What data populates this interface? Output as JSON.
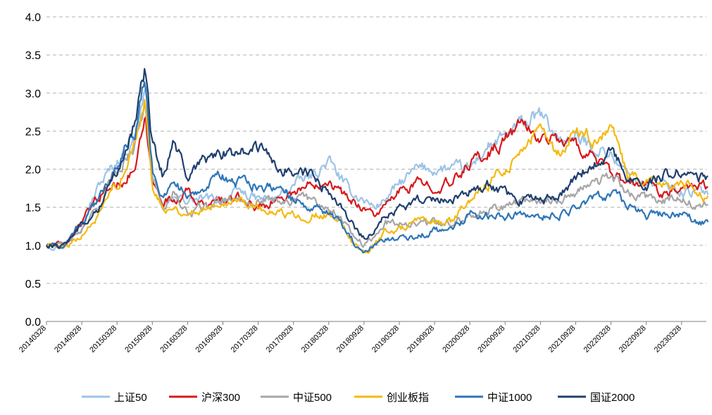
{
  "chart_data": {
    "type": "line",
    "title": "",
    "xlabel": "",
    "ylabel": "",
    "ylim": [
      0,
      4
    ],
    "yticks": [
      "0.0",
      "0.5",
      "1.0",
      "1.5",
      "2.0",
      "2.5",
      "3.0",
      "3.5",
      "4.0"
    ],
    "grid": "horizontal dashed",
    "legend_position": "bottom",
    "categories": [
      "20140328",
      "20140928",
      "20150328",
      "20150928",
      "20160328",
      "20160928",
      "20170328",
      "20170928",
      "20180328",
      "20180928",
      "20190328",
      "20190928",
      "20200328",
      "20200928",
      "20210328",
      "20210928",
      "20220328",
      "20220928",
      "20230328"
    ],
    "series": [
      {
        "name": "上证50",
        "color": "#9dc3e6",
        "x": [
          0,
          0.5,
          1,
          1.5,
          2,
          2.5,
          2.8,
          3,
          3.3,
          3.6,
          4,
          4.5,
          5,
          5.5,
          6,
          6.5,
          7,
          7.5,
          8,
          8.3,
          8.6,
          9,
          9.3,
          9.6,
          10,
          10.5,
          11,
          11.5,
          12,
          12.5,
          13,
          13.5,
          14,
          14.5,
          15,
          15.5,
          16,
          16.5,
          17,
          17.5,
          18,
          18.5,
          18.75
        ],
        "values": [
          1.0,
          1.0,
          1.3,
          1.8,
          2.1,
          2.4,
          3.1,
          1.9,
          1.5,
          1.6,
          1.6,
          1.6,
          1.6,
          1.7,
          1.6,
          1.6,
          1.8,
          1.9,
          2.1,
          1.9,
          1.7,
          1.6,
          1.5,
          1.6,
          1.8,
          2.0,
          2.0,
          2.0,
          2.0,
          2.3,
          2.4,
          2.6,
          2.7,
          2.4,
          2.4,
          2.3,
          2.2,
          1.9,
          1.8,
          1.8,
          1.7,
          1.7,
          1.7
        ]
      },
      {
        "name": "沪深300",
        "color": "#d7191c",
        "x": [
          0,
          0.5,
          1,
          1.3,
          1.6,
          2,
          2.5,
          2.8,
          3,
          3.3,
          3.6,
          4,
          4.5,
          5,
          5.5,
          6,
          6.5,
          7,
          7.5,
          8,
          8.3,
          8.6,
          9,
          9.3,
          9.6,
          10,
          10.5,
          11,
          11.5,
          12,
          12.5,
          13,
          13.5,
          14,
          14.5,
          15,
          15.5,
          16,
          16.5,
          17,
          17.5,
          18,
          18.5,
          18.75
        ],
        "values": [
          1.0,
          1.0,
          1.3,
          1.5,
          1.7,
          1.8,
          2.0,
          2.6,
          1.8,
          1.6,
          1.6,
          1.7,
          1.5,
          1.6,
          1.6,
          1.5,
          1.6,
          1.7,
          1.8,
          1.9,
          1.7,
          1.6,
          1.5,
          1.4,
          1.5,
          1.7,
          1.8,
          1.8,
          1.8,
          2.1,
          2.2,
          2.4,
          2.6,
          2.4,
          2.4,
          2.3,
          2.2,
          1.9,
          1.8,
          1.8,
          1.7,
          1.8,
          1.8,
          1.8
        ]
      },
      {
        "name": "中证500",
        "color": "#a6a6a6",
        "x": [
          0,
          0.5,
          1,
          1.5,
          2,
          2.5,
          2.8,
          3,
          3.3,
          3.6,
          4,
          4.5,
          5,
          5.5,
          6,
          6.5,
          7,
          7.5,
          8,
          8.3,
          8.6,
          9,
          9.3,
          9.6,
          10,
          10.5,
          11,
          11.5,
          12,
          12.5,
          13,
          13.5,
          14,
          14.5,
          15,
          15.5,
          16,
          16.5,
          17,
          17.5,
          18,
          18.5,
          18.75
        ],
        "values": [
          1.0,
          1.0,
          1.2,
          1.5,
          2.0,
          2.3,
          3.0,
          1.9,
          1.5,
          1.7,
          1.4,
          1.5,
          1.6,
          1.6,
          1.6,
          1.6,
          1.6,
          1.6,
          1.5,
          1.4,
          1.2,
          1.0,
          1.1,
          1.3,
          1.3,
          1.3,
          1.3,
          1.3,
          1.4,
          1.5,
          1.5,
          1.6,
          1.6,
          1.6,
          1.7,
          1.8,
          1.9,
          1.7,
          1.6,
          1.6,
          1.6,
          1.5,
          1.5
        ]
      },
      {
        "name": "创业板指",
        "color": "#f5b90f",
        "x": [
          0,
          0.5,
          1,
          1.5,
          2,
          2.5,
          2.8,
          3,
          3.3,
          3.6,
          4,
          4.5,
          5,
          5.5,
          6,
          6.5,
          7,
          7.5,
          8,
          8.3,
          8.6,
          9,
          9.3,
          9.6,
          10,
          10.5,
          11,
          11.5,
          12,
          12.5,
          13,
          13.5,
          14,
          14.5,
          15,
          15.5,
          16,
          16.5,
          17,
          17.5,
          18,
          18.5,
          18.75
        ],
        "values": [
          1.0,
          1.0,
          1.1,
          1.4,
          1.8,
          2.3,
          2.9,
          1.8,
          1.5,
          1.5,
          1.4,
          1.5,
          1.6,
          1.6,
          1.5,
          1.4,
          1.4,
          1.4,
          1.4,
          1.3,
          1.1,
          0.9,
          1.0,
          1.2,
          1.2,
          1.3,
          1.3,
          1.3,
          1.6,
          1.8,
          2.0,
          2.3,
          2.5,
          2.2,
          2.5,
          2.4,
          2.5,
          1.9,
          1.8,
          1.8,
          1.8,
          1.7,
          1.6
        ]
      },
      {
        "name": "中证1000",
        "color": "#2e75b6",
        "x": [
          0,
          0.5,
          1,
          1.5,
          2,
          2.5,
          2.8,
          3,
          3.3,
          3.6,
          4,
          4.5,
          5,
          5.5,
          6,
          6.5,
          7,
          7.5,
          8,
          8.3,
          8.6,
          9,
          9.3,
          9.6,
          10,
          10.5,
          11,
          11.5,
          12,
          12.5,
          13,
          13.5,
          14,
          14.5,
          15,
          15.5,
          16,
          16.5,
          17,
          17.5,
          18,
          18.5,
          18.75
        ],
        "values": [
          1.0,
          1.0,
          1.3,
          1.6,
          2.1,
          2.5,
          3.2,
          2.0,
          1.6,
          1.9,
          1.6,
          1.8,
          1.9,
          1.8,
          1.8,
          1.8,
          1.6,
          1.5,
          1.4,
          1.3,
          1.1,
          0.9,
          1.0,
          1.1,
          1.1,
          1.1,
          1.2,
          1.2,
          1.4,
          1.4,
          1.4,
          1.4,
          1.4,
          1.4,
          1.5,
          1.6,
          1.7,
          1.5,
          1.4,
          1.4,
          1.4,
          1.3,
          1.3
        ]
      },
      {
        "name": "国证2000",
        "color": "#1f3f6e",
        "x": [
          0,
          0.5,
          1,
          1.5,
          2,
          2.5,
          2.8,
          3,
          3.3,
          3.6,
          4,
          4.5,
          5,
          5.5,
          6,
          6.5,
          7,
          7.5,
          8,
          8.3,
          8.6,
          9,
          9.3,
          9.6,
          10,
          10.5,
          11,
          11.5,
          12,
          12.5,
          13,
          13.5,
          14,
          14.5,
          15,
          15.5,
          16,
          16.5,
          17,
          17.5,
          18,
          18.5,
          18.75
        ],
        "values": [
          1.0,
          1.0,
          1.3,
          1.5,
          2.0,
          2.6,
          3.3,
          2.3,
          1.9,
          2.4,
          1.9,
          2.1,
          2.2,
          2.2,
          2.3,
          2.0,
          2.0,
          1.9,
          1.7,
          1.5,
          1.3,
          1.1,
          1.2,
          1.4,
          1.5,
          1.6,
          1.6,
          1.6,
          1.7,
          1.8,
          1.7,
          1.6,
          1.6,
          1.6,
          1.9,
          2.1,
          2.2,
          1.9,
          1.8,
          1.9,
          2.0,
          1.9,
          1.9
        ]
      }
    ]
  }
}
